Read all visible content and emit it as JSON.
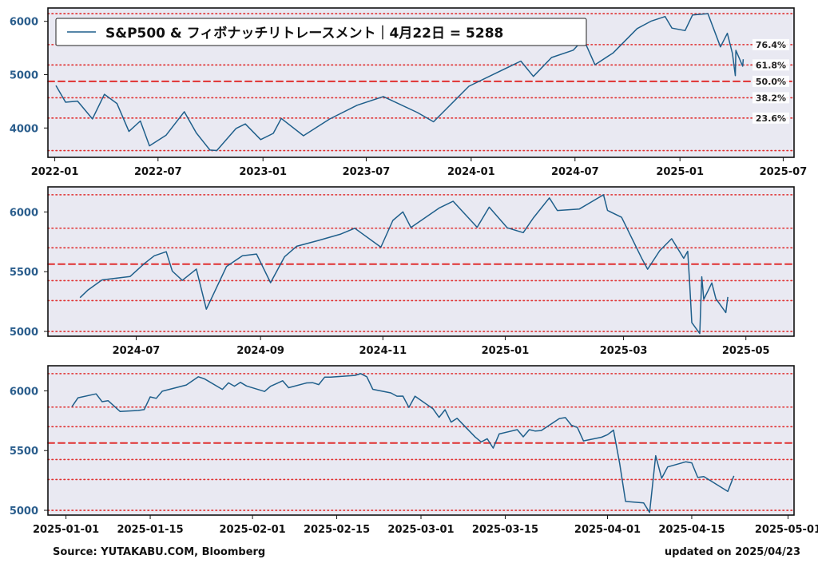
{
  "footer": {
    "source": "Source: YUTAKABU.COM, Bloomberg",
    "updated": "updated on 2025/04/23"
  },
  "colors": {
    "line": "#1f5f8b",
    "fib": "#e03030",
    "panel_bg": "#e9e9f2",
    "ytick": "#2a5d8c"
  },
  "chart_data": [
    {
      "type": "line",
      "legend": "S&P500 & フィボナッチリトレースメント｜4月22日 = 5288",
      "legend_position": "top-left",
      "x_ticks": [
        "2022-01",
        "2022-07",
        "2023-01",
        "2023-07",
        "2024-01",
        "2024-07",
        "2025-01",
        "2025-07"
      ],
      "x_range": [
        "2021-12-20",
        "2025-07-20"
      ],
      "y_ticks": [
        4000,
        5000,
        6000
      ],
      "ylim": [
        3450,
        6250
      ],
      "fib_levels": [
        {
          "label": "76.4%",
          "value": 5563
        },
        {
          "label": "61.8%",
          "value": 5182
        },
        {
          "label": "50.0%",
          "value": 4875
        },
        {
          "label": "38.2%",
          "value": 4567
        },
        {
          "label": "23.6%",
          "value": 4186
        }
      ],
      "extra_levels": [
        6144,
        3577
      ],
      "series": [
        {
          "name": "S&P500",
          "points": [
            [
              "2022-01-03",
              4796
            ],
            [
              "2022-01-20",
              4483
            ],
            [
              "2022-02-10",
              4504
            ],
            [
              "2022-03-08",
              4170
            ],
            [
              "2022-03-29",
              4631
            ],
            [
              "2022-04-20",
              4459
            ],
            [
              "2022-05-11",
              3935
            ],
            [
              "2022-05-31",
              4132
            ],
            [
              "2022-06-16",
              3666
            ],
            [
              "2022-07-15",
              3863
            ],
            [
              "2022-08-16",
              4305
            ],
            [
              "2022-09-06",
              3908
            ],
            [
              "2022-09-30",
              3586
            ],
            [
              "2022-10-12",
              3577
            ],
            [
              "2022-11-15",
              3992
            ],
            [
              "2022-12-01",
              4076
            ],
            [
              "2022-12-28",
              3783
            ],
            [
              "2023-01-19",
              3899
            ],
            [
              "2023-02-02",
              4179
            ],
            [
              "2023-03-13",
              3855
            ],
            [
              "2023-04-28",
              4169
            ],
            [
              "2023-06-15",
              4426
            ],
            [
              "2023-07-31",
              4589
            ],
            [
              "2023-09-29",
              4288
            ],
            [
              "2023-10-27",
              4117
            ],
            [
              "2023-12-28",
              4783
            ],
            [
              "2024-02-12",
              5021
            ],
            [
              "2024-03-28",
              5254
            ],
            [
              "2024-04-19",
              4967
            ],
            [
              "2024-05-21",
              5321
            ],
            [
              "2024-06-28",
              5460
            ],
            [
              "2024-07-16",
              5667
            ],
            [
              "2024-08-05",
              5186
            ],
            [
              "2024-09-06",
              5408
            ],
            [
              "2024-10-18",
              5864
            ],
            [
              "2024-11-11",
              6001
            ],
            [
              "2024-12-06",
              6090
            ],
            [
              "2024-12-18",
              5872
            ],
            [
              "2025-01-10",
              5827
            ],
            [
              "2025-01-23",
              6118
            ],
            [
              "2025-02-19",
              6144
            ],
            [
              "2025-03-13",
              5521
            ],
            [
              "2025-03-25",
              5776
            ],
            [
              "2025-04-03",
              5397
            ],
            [
              "2025-04-08",
              4982
            ],
            [
              "2025-04-09",
              5457
            ],
            [
              "2025-04-21",
              5158
            ],
            [
              "2025-04-22",
              5288
            ]
          ]
        }
      ]
    },
    {
      "type": "line",
      "x_ticks": [
        "2024-07",
        "2024-09",
        "2024-11",
        "2025-01",
        "2025-03",
        "2025-05"
      ],
      "x_range": [
        "2024-05-18",
        "2025-05-25"
      ],
      "y_ticks": [
        5000,
        5500,
        6000
      ],
      "ylim": [
        4960,
        6210
      ],
      "fib_levels": [
        6144,
        5864,
        5700,
        5563,
        5425,
        5258,
        5000
      ],
      "dashed_level": 5563,
      "series": [
        {
          "name": "S&P500",
          "points": [
            [
              "2024-06-03",
              5283
            ],
            [
              "2024-06-07",
              5347
            ],
            [
              "2024-06-14",
              5431
            ],
            [
              "2024-06-28",
              5460
            ],
            [
              "2024-07-05",
              5567
            ],
            [
              "2024-07-10",
              5633
            ],
            [
              "2024-07-16",
              5667
            ],
            [
              "2024-07-19",
              5505
            ],
            [
              "2024-07-24",
              5427
            ],
            [
              "2024-07-31",
              5522
            ],
            [
              "2024-08-05",
              5186
            ],
            [
              "2024-08-15",
              5543
            ],
            [
              "2024-08-23",
              5634
            ],
            [
              "2024-08-30",
              5648
            ],
            [
              "2024-09-06",
              5408
            ],
            [
              "2024-09-13",
              5626
            ],
            [
              "2024-09-19",
              5713
            ],
            [
              "2024-09-30",
              5762
            ],
            [
              "2024-10-11",
              5815
            ],
            [
              "2024-10-18",
              5864
            ],
            [
              "2024-10-31",
              5705
            ],
            [
              "2024-11-06",
              5929
            ],
            [
              "2024-11-11",
              6001
            ],
            [
              "2024-11-15",
              5870
            ],
            [
              "2024-11-29",
              6032
            ],
            [
              "2024-12-06",
              6090
            ],
            [
              "2024-12-18",
              5872
            ],
            [
              "2024-12-24",
              6040
            ],
            [
              "2025-01-02",
              5868
            ],
            [
              "2025-01-10",
              5827
            ],
            [
              "2025-01-15",
              5949
            ],
            [
              "2025-01-23",
              6118
            ],
            [
              "2025-01-27",
              6012
            ],
            [
              "2025-02-07",
              6025
            ],
            [
              "2025-02-19",
              6144
            ],
            [
              "2025-02-21",
              6013
            ],
            [
              "2025-02-28",
              5955
            ],
            [
              "2025-03-10",
              5614
            ],
            [
              "2025-03-13",
              5521
            ],
            [
              "2025-03-19",
              5675
            ],
            [
              "2025-03-25",
              5776
            ],
            [
              "2025-03-31",
              5612
            ],
            [
              "2025-04-02",
              5671
            ],
            [
              "2025-04-03",
              5397
            ],
            [
              "2025-04-04",
              5074
            ],
            [
              "2025-04-08",
              4982
            ],
            [
              "2025-04-09",
              5457
            ],
            [
              "2025-04-10",
              5268
            ],
            [
              "2025-04-14",
              5406
            ],
            [
              "2025-04-16",
              5275
            ],
            [
              "2025-04-21",
              5158
            ],
            [
              "2025-04-22",
              5288
            ]
          ]
        }
      ]
    },
    {
      "type": "line",
      "x_ticks": [
        "2025-01-01",
        "2025-01-15",
        "2025-02-01",
        "2025-02-15",
        "2025-03-01",
        "2025-03-15",
        "2025-04-01",
        "2025-04-15",
        "2025-05-01"
      ],
      "x_range": [
        "2024-12-29",
        "2025-05-02"
      ],
      "y_ticks": [
        5000,
        5500,
        6000
      ],
      "ylim": [
        4960,
        6210
      ],
      "fib_levels": [
        6144,
        5864,
        5700,
        5563,
        5425,
        5258,
        5000
      ],
      "dashed_level": 5563,
      "series": [
        {
          "name": "S&P500",
          "points": [
            [
              "2025-01-02",
              5868
            ],
            [
              "2025-01-03",
              5942
            ],
            [
              "2025-01-06",
              5975
            ],
            [
              "2025-01-07",
              5909
            ],
            [
              "2025-01-08",
              5918
            ],
            [
              "2025-01-10",
              5827
            ],
            [
              "2025-01-13",
              5836
            ],
            [
              "2025-01-14",
              5843
            ],
            [
              "2025-01-15",
              5949
            ],
            [
              "2025-01-16",
              5937
            ],
            [
              "2025-01-17",
              5997
            ],
            [
              "2025-01-21",
              6049
            ],
            [
              "2025-01-23",
              6118
            ],
            [
              "2025-01-24",
              6101
            ],
            [
              "2025-01-27",
              6012
            ],
            [
              "2025-01-28",
              6067
            ],
            [
              "2025-01-29",
              6039
            ],
            [
              "2025-01-30",
              6071
            ],
            [
              "2025-01-31",
              6041
            ],
            [
              "2025-02-03",
              5995
            ],
            [
              "2025-02-04",
              6038
            ],
            [
              "2025-02-05",
              6061
            ],
            [
              "2025-02-06",
              6084
            ],
            [
              "2025-02-07",
              6026
            ],
            [
              "2025-02-10",
              6066
            ],
            [
              "2025-02-11",
              6068
            ],
            [
              "2025-02-12",
              6052
            ],
            [
              "2025-02-13",
              6115
            ],
            [
              "2025-02-14",
              6115
            ],
            [
              "2025-02-18",
              6129
            ],
            [
              "2025-02-19",
              6144
            ],
            [
              "2025-02-20",
              6118
            ],
            [
              "2025-02-21",
              6013
            ],
            [
              "2025-02-24",
              5983
            ],
            [
              "2025-02-25",
              5955
            ],
            [
              "2025-02-26",
              5956
            ],
            [
              "2025-02-27",
              5861
            ],
            [
              "2025-02-28",
              5955
            ],
            [
              "2025-03-03",
              5850
            ],
            [
              "2025-03-04",
              5778
            ],
            [
              "2025-03-05",
              5842
            ],
            [
              "2025-03-06",
              5738
            ],
            [
              "2025-03-07",
              5770
            ],
            [
              "2025-03-10",
              5614
            ],
            [
              "2025-03-11",
              5572
            ],
            [
              "2025-03-12",
              5599
            ],
            [
              "2025-03-13",
              5521
            ],
            [
              "2025-03-14",
              5639
            ],
            [
              "2025-03-17",
              5675
            ],
            [
              "2025-03-18",
              5615
            ],
            [
              "2025-03-19",
              5675
            ],
            [
              "2025-03-20",
              5663
            ],
            [
              "2025-03-21",
              5668
            ],
            [
              "2025-03-24",
              5768
            ],
            [
              "2025-03-25",
              5776
            ],
            [
              "2025-03-26",
              5712
            ],
            [
              "2025-03-27",
              5693
            ],
            [
              "2025-03-28",
              5581
            ],
            [
              "2025-03-31",
              5612
            ],
            [
              "2025-04-01",
              5633
            ],
            [
              "2025-04-02",
              5671
            ],
            [
              "2025-04-03",
              5397
            ],
            [
              "2025-04-04",
              5074
            ],
            [
              "2025-04-07",
              5062
            ],
            [
              "2025-04-08",
              4982
            ],
            [
              "2025-04-09",
              5457
            ],
            [
              "2025-04-10",
              5268
            ],
            [
              "2025-04-11",
              5363
            ],
            [
              "2025-04-14",
              5406
            ],
            [
              "2025-04-15",
              5397
            ],
            [
              "2025-04-16",
              5275
            ],
            [
              "2025-04-17",
              5283
            ],
            [
              "2025-04-21",
              5158
            ],
            [
              "2025-04-22",
              5288
            ]
          ]
        }
      ]
    }
  ]
}
